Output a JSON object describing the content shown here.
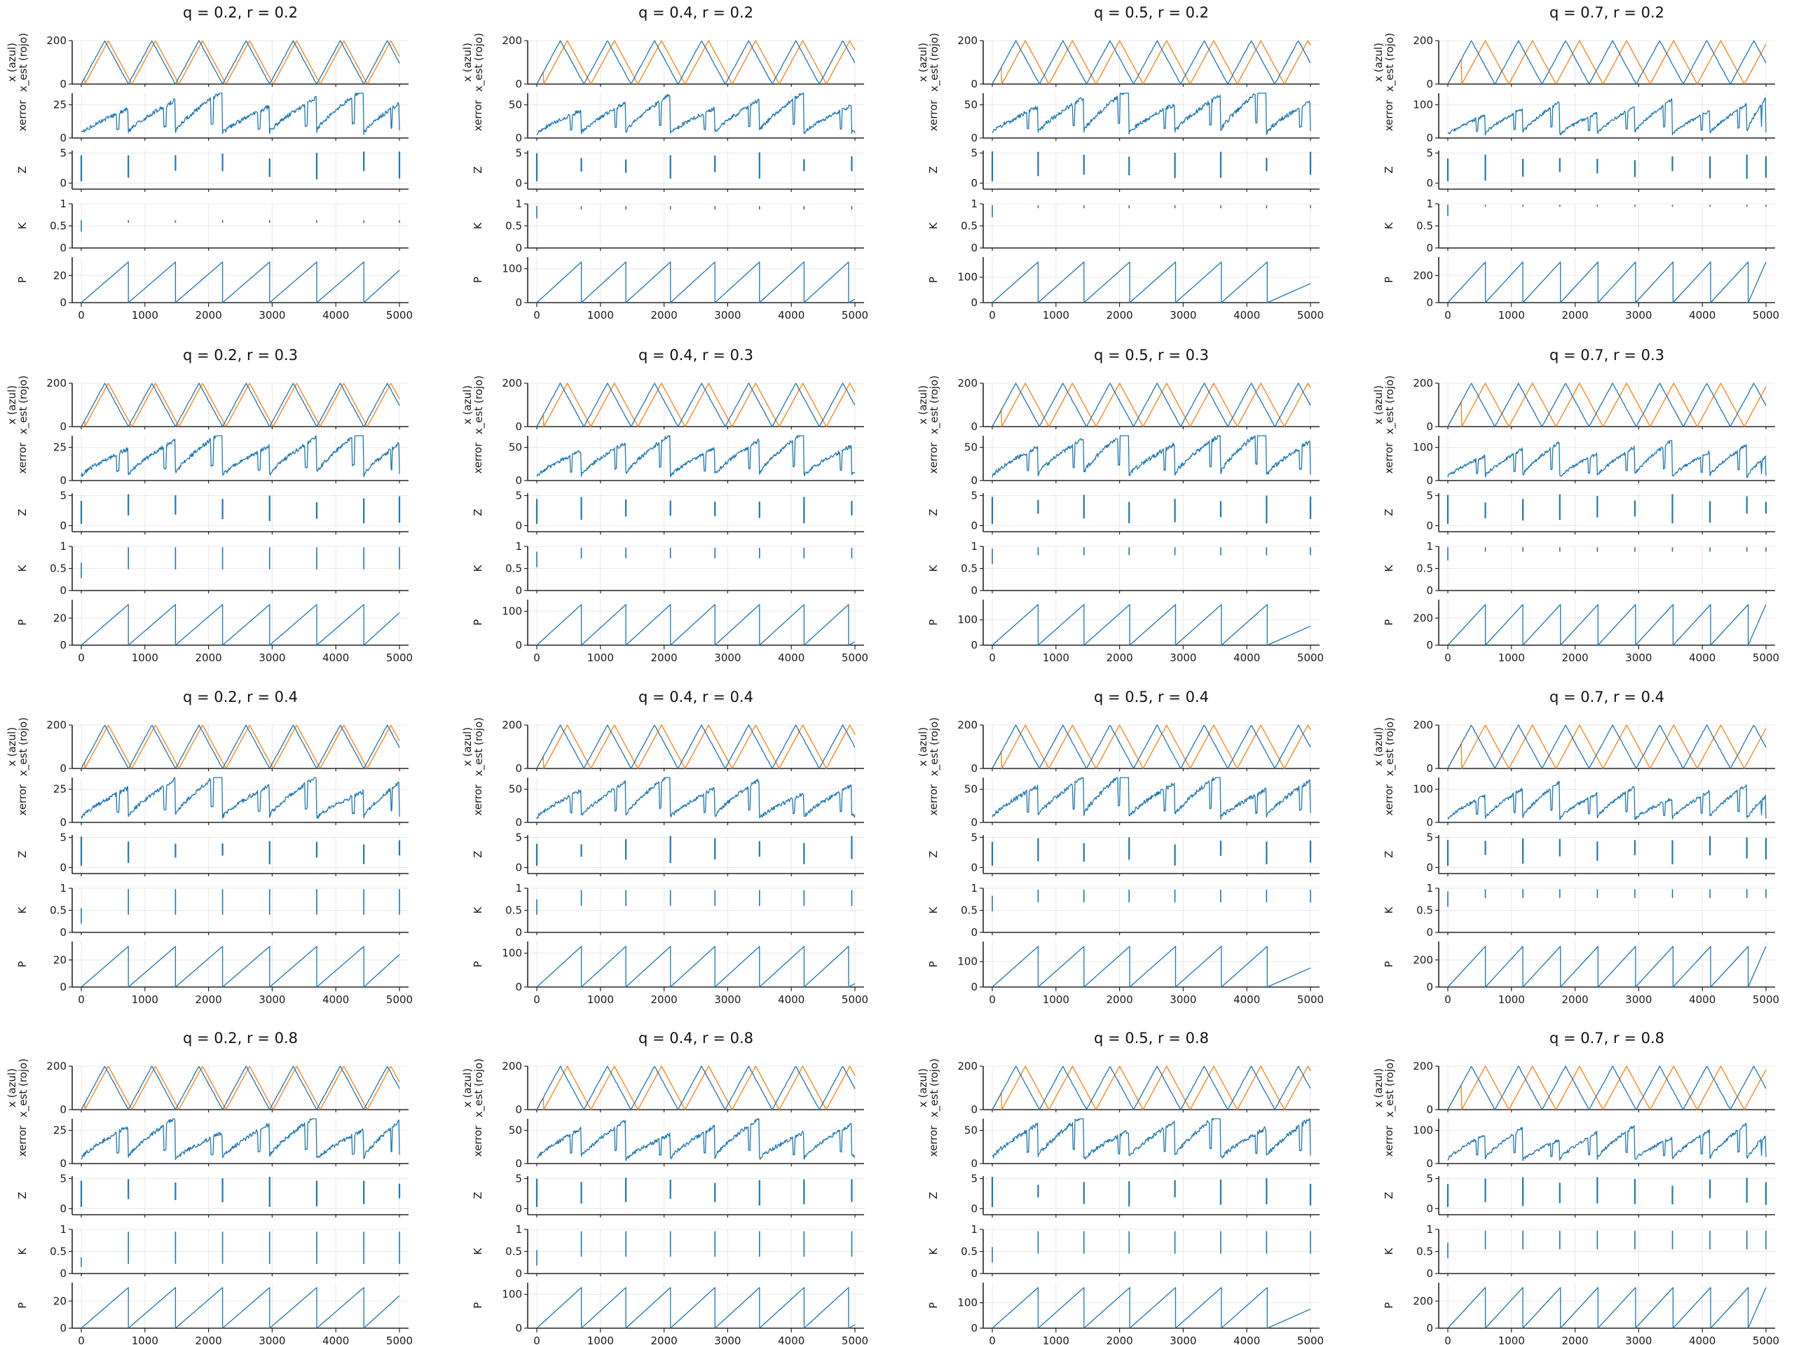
{
  "figure": {
    "title": "",
    "colors": {
      "actual": "#1f77b4",
      "estimate": "#ff7f0e",
      "grid": "#e8e8e8",
      "axis": "#262626"
    }
  },
  "chart_data": {
    "type": "line",
    "layout": "grid of 4 by 4 panels, each panel a stack of 5 shared-x subplots",
    "x_ticks": [
      0,
      1000,
      2000,
      3000,
      4000,
      5000
    ],
    "x_range": [
      0,
      5000
    ],
    "grid": true,
    "q_values": [
      0.2,
      0.4,
      0.5,
      0.7
    ],
    "r_values": [
      0.2,
      0.3,
      0.4,
      0.8
    ],
    "subplots": [
      {
        "key": "x",
        "ylabel_lines": [
          "x (azul)",
          "x_est (rojo)"
        ]
      },
      {
        "key": "xerror",
        "ylabel_lines": [
          "xerror"
        ]
      },
      {
        "key": "Z",
        "ylabel_lines": [
          "Z"
        ]
      },
      {
        "key": "K",
        "ylabel_lines": [
          "K"
        ]
      },
      {
        "key": "P",
        "ylabel_lines": [
          "P"
        ]
      }
    ],
    "series_colors": {
      "x": "#1f77b4",
      "x_est": "#ff7f0e",
      "other": "#1f77b4"
    },
    "x_signal": {
      "type": "triangle",
      "min": 0,
      "max": 200,
      "period": 740
    },
    "z_range": [
      0,
      5
    ],
    "k_range": [
      0,
      1
    ],
    "by_q": [
      {
        "q": 0.2,
        "x_est_lag": 55,
        "x_yticks": [
          0,
          200
        ],
        "xerror_yticks": [
          0,
          25
        ],
        "xerror_max": 40,
        "z_yticks": [
          0,
          5
        ],
        "k_yticks": [
          0.0,
          0.5,
          1.0
        ],
        "p_yticks": [
          0,
          20
        ],
        "p_max": 30,
        "p_period": 740,
        "p_end": 24,
        "spike_times": [
          0,
          740,
          1480,
          2220,
          2960,
          3700,
          4440,
          5000
        ]
      },
      {
        "q": 0.4,
        "x_est_lag": 110,
        "x_yticks": [
          0,
          200
        ],
        "xerror_yticks": [
          0,
          50
        ],
        "xerror_max": 75,
        "z_yticks": [
          0,
          5
        ],
        "k_yticks": [
          0.0,
          0.5,
          1.0
        ],
        "p_yticks": [
          0,
          100
        ],
        "p_max": 120,
        "p_period": 700,
        "p_end": 10,
        "spike_times": [
          0,
          700,
          1400,
          2100,
          2800,
          3500,
          4200,
          4950
        ]
      },
      {
        "q": 0.5,
        "x_est_lag": 150,
        "x_yticks": [
          0,
          200
        ],
        "xerror_yticks": [
          0,
          50
        ],
        "xerror_max": 85,
        "z_yticks": [
          0,
          5
        ],
        "k_yticks": [
          0.0,
          0.5,
          1.0
        ],
        "p_yticks": [
          0,
          100
        ],
        "p_max": 160,
        "p_period": 720,
        "p_end": 75,
        "spike_times": [
          0,
          720,
          1440,
          2150,
          2870,
          3590,
          4310,
          5000
        ]
      },
      {
        "q": 0.7,
        "x_est_lag": 220,
        "x_yticks": [
          0,
          200
        ],
        "xerror_yticks": [
          0,
          100
        ],
        "xerror_max": 125,
        "z_yticks": [
          0,
          5
        ],
        "k_yticks": [
          0.0,
          0.5,
          1.0
        ],
        "p_yticks": [
          0,
          200
        ],
        "p_max": 300,
        "p_period": 590,
        "p_end": 300,
        "spike_times": [
          0,
          590,
          1180,
          1760,
          2350,
          2940,
          3530,
          4120,
          4700,
          5000
        ]
      }
    ],
    "k_level_by_panel": [
      [
        {
          "hi": 0.63,
          "lo": 0.57
        },
        {
          "hi": 0.95,
          "lo": 0.87
        },
        {
          "hi": 0.97,
          "lo": 0.9
        },
        {
          "hi": 0.98,
          "lo": 0.93
        }
      ],
      [
        {
          "hi": 0.98,
          "lo": 0.48
        },
        {
          "hi": 0.97,
          "lo": 0.73
        },
        {
          "hi": 0.98,
          "lo": 0.8
        },
        {
          "hi": 0.98,
          "lo": 0.88
        }
      ],
      [
        {
          "hi": 0.98,
          "lo": 0.4
        },
        {
          "hi": 0.96,
          "lo": 0.6
        },
        {
          "hi": 0.97,
          "lo": 0.68
        },
        {
          "hi": 0.98,
          "lo": 0.78
        }
      ],
      [
        {
          "hi": 0.95,
          "lo": 0.22
        },
        {
          "hi": 0.96,
          "lo": 0.38
        },
        {
          "hi": 0.96,
          "lo": 0.45
        },
        {
          "hi": 0.97,
          "lo": 0.55
        }
      ]
    ],
    "panels": [
      [
        {
          "title": "q = 0.2, r = 0.2"
        },
        {
          "title": "q = 0.4, r = 0.2"
        },
        {
          "title": "q = 0.5, r = 0.2"
        },
        {
          "title": "q = 0.7, r = 0.2"
        }
      ],
      [
        {
          "title": "q = 0.2, r = 0.3"
        },
        {
          "title": "q = 0.4, r = 0.3"
        },
        {
          "title": "q = 0.5, r = 0.3"
        },
        {
          "title": "q = 0.7, r = 0.3"
        }
      ],
      [
        {
          "title": "q = 0.2, r = 0.4"
        },
        {
          "title": "q = 0.4, r = 0.4"
        },
        {
          "title": "q = 0.5, r = 0.4"
        },
        {
          "title": "q = 0.7, r = 0.4"
        }
      ],
      [
        {
          "title": "q = 0.2, r = 0.8"
        },
        {
          "title": "q = 0.4, r = 0.8"
        },
        {
          "title": "q = 0.5, r = 0.8"
        },
        {
          "title": "q = 0.7, r = 0.8"
        }
      ]
    ]
  }
}
